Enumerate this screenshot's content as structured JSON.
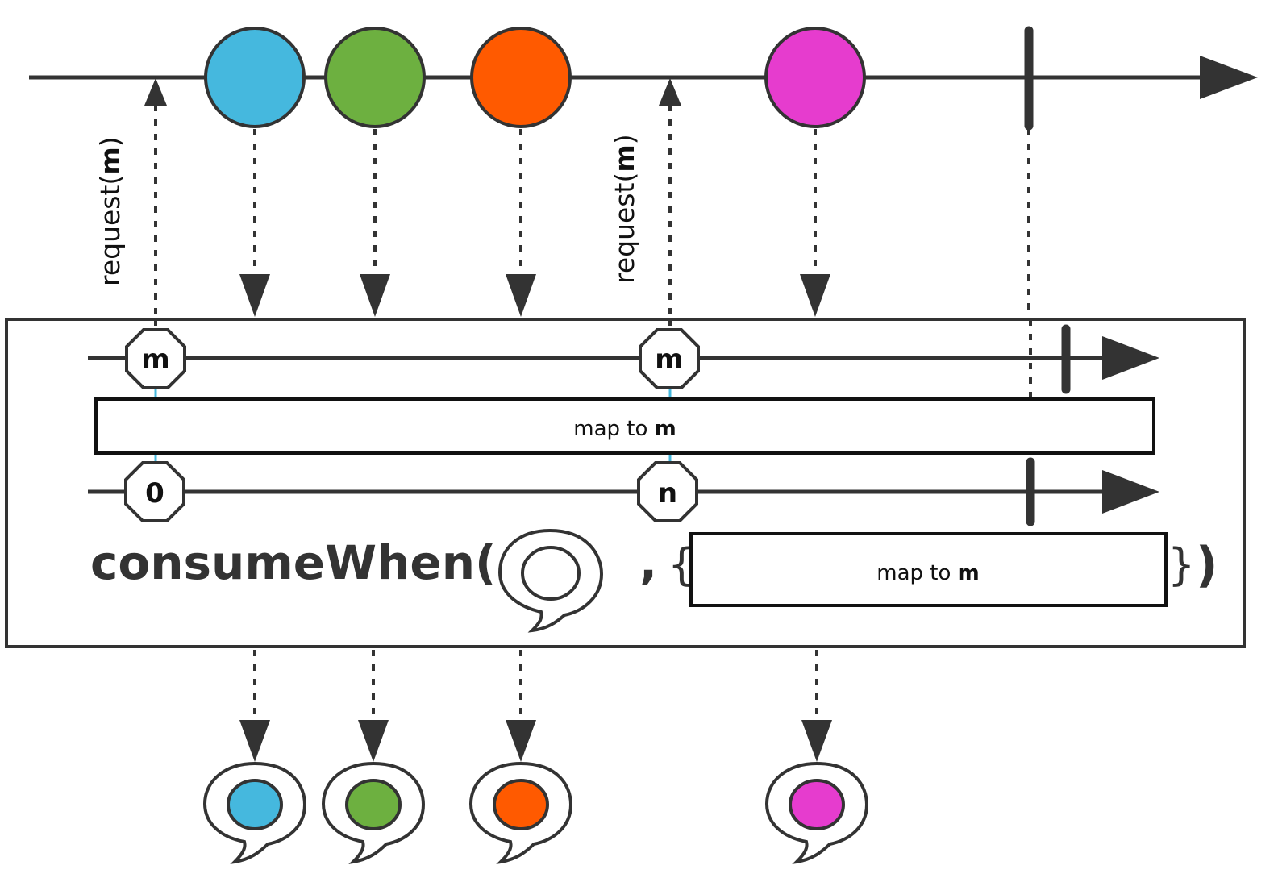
{
  "request_label_prefix": "request(",
  "request_label_param": "m",
  "request_label_suffix": ")",
  "inner_top_marker": "m",
  "inner_bottom_markers": [
    "0",
    "n"
  ],
  "map_box_prefix": "map to ",
  "map_box_param": "m",
  "operator_name": "consumeWhen(",
  "operator_comma": ",",
  "operator_brace_open": "{",
  "operator_brace_close": "}",
  "operator_close_paren": ")",
  "marbles": [
    {
      "color": "#45b8de"
    },
    {
      "color": "#6db040"
    },
    {
      "color": "#ff5a00"
    },
    {
      "color": "#e63cce"
    }
  ],
  "colors": {
    "stroke": "#333333",
    "connector": "#45b8de"
  }
}
